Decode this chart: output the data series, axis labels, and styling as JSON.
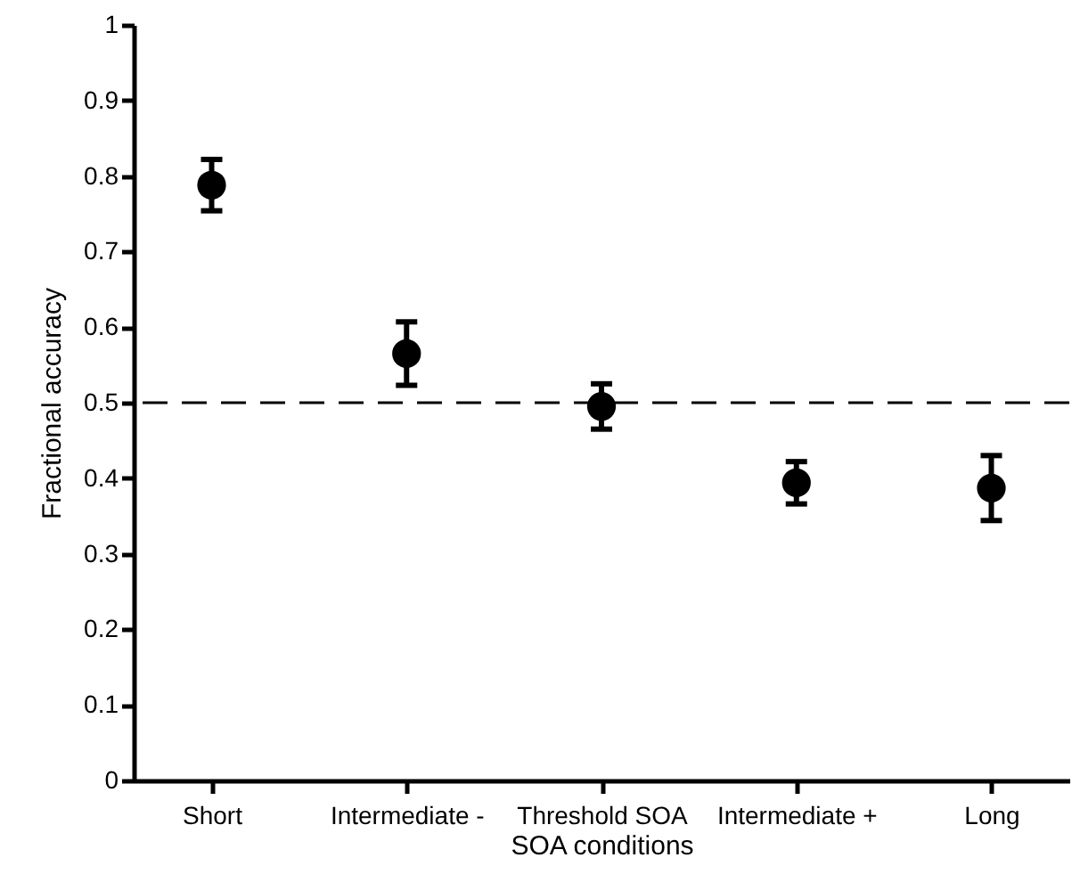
{
  "chart_data": {
    "type": "scatter",
    "xlabel": "SOA conditions",
    "ylabel": "Fractional accuracy",
    "categories": [
      "Short",
      "Intermediate -",
      "Threshold SOA",
      "Intermediate +",
      "Long"
    ],
    "values": [
      0.788,
      0.565,
      0.495,
      0.394,
      0.387
    ],
    "errors": [
      0.034,
      0.042,
      0.03,
      0.028,
      0.043
    ],
    "color": "#000000",
    "marker": "circle",
    "ylim": [
      0,
      1
    ],
    "yticks": [
      0,
      0.1,
      0.2,
      0.3,
      0.4,
      0.5,
      0.6,
      0.7,
      0.8,
      0.9,
      1
    ],
    "ref_lines": [
      {
        "axis": "y",
        "value": 0.5,
        "label": null,
        "color": "#000000",
        "line_style": "dashed"
      }
    ],
    "grid": false,
    "legend": false
  }
}
